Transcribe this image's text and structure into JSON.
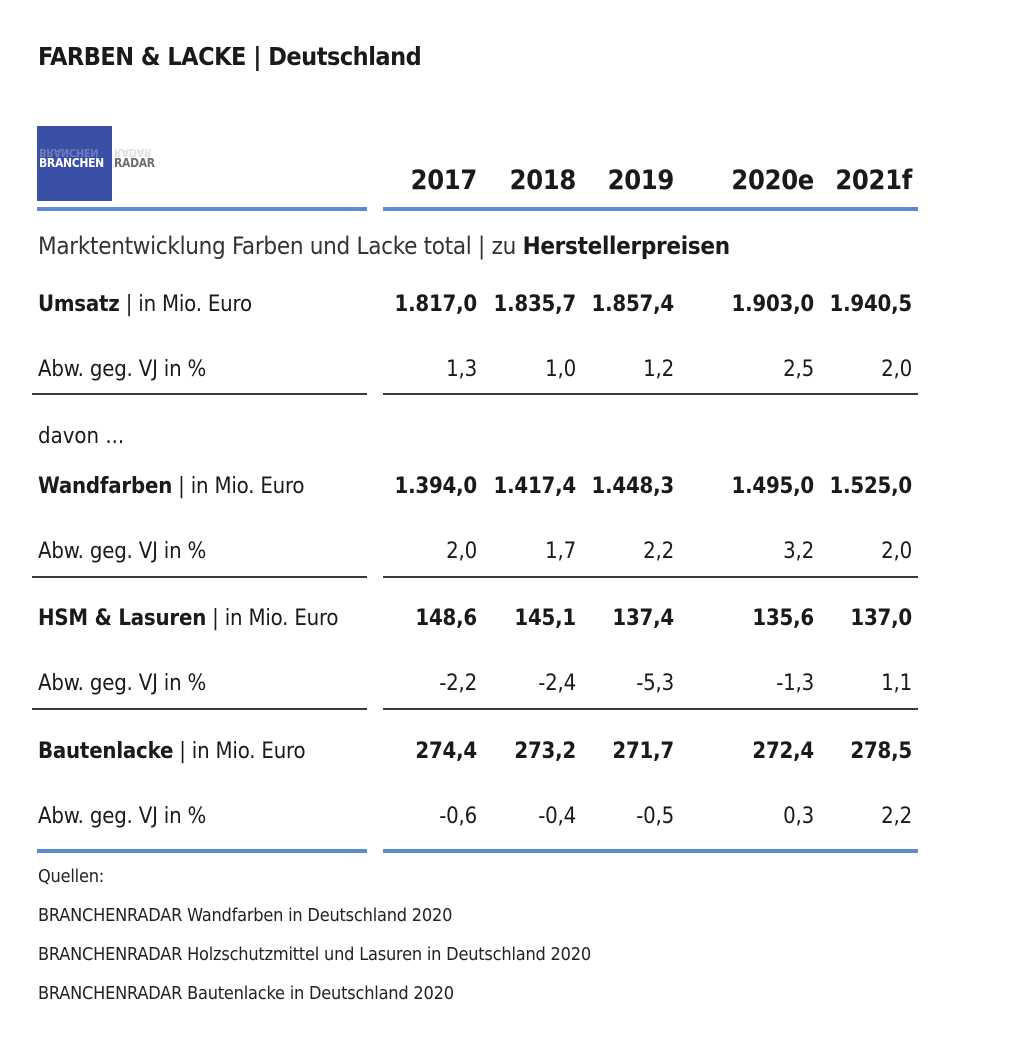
{
  "title_bold": "FARBEN & LACKE",
  "title_sep": " | ",
  "title_rest": "Deutschland",
  "logo": {
    "part1": "BRANCHEN",
    "part2": "RADAR",
    "bg_color": "#3a4fa6"
  },
  "accent_color": "#5b8bd0",
  "subtitle_plain": "Marktentwicklung Farben und Lacke total | zu ",
  "subtitle_bold": "Herstellerpreisen",
  "davon_label": "davon ...",
  "chart_data": {
    "type": "table",
    "columns": [
      "2017",
      "2018",
      "2019",
      "2020e",
      "2021f"
    ],
    "rows": [
      {
        "name": "Umsatz",
        "unit": " | in Mio. Euro",
        "values": [
          "1.817,0",
          "1.835,7",
          "1.857,4",
          "1.903,0",
          "1.940,5"
        ],
        "change_label": "Abw. geg. VJ in %",
        "change": [
          "1,3",
          "1,0",
          "1,2",
          "2,5",
          "2,0"
        ]
      },
      {
        "name": "Wandfarben",
        "unit": " | in Mio. Euro",
        "values": [
          "1.394,0",
          "1.417,4",
          "1.448,3",
          "1.495,0",
          "1.525,0"
        ],
        "change_label": "Abw. geg. VJ in %",
        "change": [
          "2,0",
          "1,7",
          "2,2",
          "3,2",
          "2,0"
        ]
      },
      {
        "name": "HSM & Lasuren",
        "unit": " | in Mio. Euro",
        "values": [
          "148,6",
          "145,1",
          "137,4",
          "135,6",
          "137,0"
        ],
        "change_label": "Abw. geg. VJ in %",
        "change": [
          "-2,2",
          "-2,4",
          "-5,3",
          "-1,3",
          "1,1"
        ]
      },
      {
        "name": "Bautenlacke",
        "unit": " | in Mio. Euro",
        "values": [
          "274,4",
          "273,2",
          "271,7",
          "272,4",
          "278,5"
        ],
        "change_label": "Abw. geg. VJ in %",
        "change": [
          "-0,6",
          "-0,4",
          "-0,5",
          "0,3",
          "2,2"
        ]
      }
    ]
  },
  "sources": {
    "heading": "Quellen:",
    "items": [
      "BRANCHENRADAR Wandfarben in Deutschland 2020",
      "BRANCHENRADAR Holzschutzmittel und Lasuren in Deutschland 2020",
      "BRANCHENRADAR Bautenlacke in Deutschland 2020"
    ]
  }
}
